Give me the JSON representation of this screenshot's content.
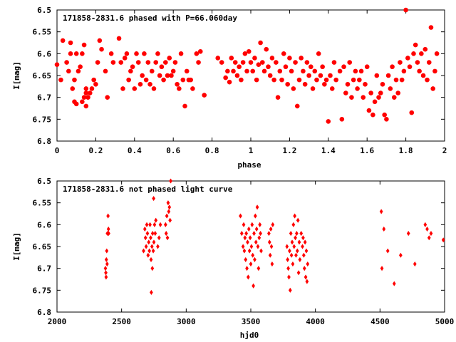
{
  "chart_data": [
    {
      "type": "scatter",
      "title": "171858-2831.6 phased with P=66.060day",
      "xlabel": "phase",
      "ylabel": "I[mag]",
      "xlim": [
        0,
        2
      ],
      "ylim": [
        6.5,
        6.8
      ],
      "y_inverted": true,
      "x_ticks": [
        "0",
        "0.2",
        "0.4",
        "0.6",
        "0.8",
        "1",
        "1.2",
        "1.4",
        "1.6",
        "1.8",
        "2"
      ],
      "y_ticks": [
        "6.5",
        "6.55",
        "6.6",
        "6.65",
        "6.7",
        "6.75",
        "6.8"
      ],
      "grid": false,
      "marker": "filled-circle",
      "color": "#ff0000",
      "points": [
        [
          0.0,
          6.625
        ],
        [
          0.02,
          6.66
        ],
        [
          0.03,
          6.57
        ],
        [
          0.05,
          6.62
        ],
        [
          0.06,
          6.64
        ],
        [
          0.07,
          6.6
        ],
        [
          0.07,
          6.575
        ],
        [
          0.08,
          6.68
        ],
        [
          0.09,
          6.66
        ],
        [
          0.09,
          6.71
        ],
        [
          0.1,
          6.6
        ],
        [
          0.1,
          6.715
        ],
        [
          0.11,
          6.64
        ],
        [
          0.12,
          6.63
        ],
        [
          0.13,
          6.6
        ],
        [
          0.13,
          6.71
        ],
        [
          0.14,
          6.7
        ],
        [
          0.14,
          6.58
        ],
        [
          0.15,
          6.68
        ],
        [
          0.15,
          6.69
        ],
        [
          0.15,
          6.72
        ],
        [
          0.16,
          6.7
        ],
        [
          0.17,
          6.69
        ],
        [
          0.18,
          6.68
        ],
        [
          0.19,
          6.66
        ],
        [
          0.2,
          6.67
        ],
        [
          0.21,
          6.62
        ],
        [
          0.22,
          6.57
        ],
        [
          0.23,
          6.59
        ],
        [
          0.25,
          6.64
        ],
        [
          0.26,
          6.7
        ],
        [
          0.28,
          6.6
        ],
        [
          0.29,
          6.62
        ],
        [
          0.32,
          6.565
        ],
        [
          0.33,
          6.62
        ],
        [
          0.34,
          6.68
        ],
        [
          0.35,
          6.61
        ],
        [
          0.36,
          6.6
        ],
        [
          0.37,
          6.66
        ],
        [
          0.38,
          6.64
        ],
        [
          0.39,
          6.63
        ],
        [
          0.4,
          6.68
        ],
        [
          0.41,
          6.6
        ],
        [
          0.42,
          6.62
        ],
        [
          0.43,
          6.67
        ],
        [
          0.44,
          6.65
        ],
        [
          0.45,
          6.6
        ],
        [
          0.46,
          6.66
        ],
        [
          0.47,
          6.62
        ],
        [
          0.48,
          6.67
        ],
        [
          0.49,
          6.64
        ],
        [
          0.5,
          6.68
        ],
        [
          0.51,
          6.62
        ],
        [
          0.52,
          6.6
        ],
        [
          0.53,
          6.65
        ],
        [
          0.54,
          6.63
        ],
        [
          0.55,
          6.66
        ],
        [
          0.56,
          6.62
        ],
        [
          0.57,
          6.65
        ],
        [
          0.58,
          6.61
        ],
        [
          0.59,
          6.65
        ],
        [
          0.6,
          6.64
        ],
        [
          0.61,
          6.62
        ],
        [
          0.62,
          6.67
        ],
        [
          0.63,
          6.68
        ],
        [
          0.64,
          6.6
        ],
        [
          0.65,
          6.66
        ],
        [
          0.66,
          6.72
        ],
        [
          0.67,
          6.64
        ],
        [
          0.68,
          6.66
        ],
        [
          0.69,
          6.66
        ],
        [
          0.7,
          6.68
        ],
        [
          0.72,
          6.6
        ],
        [
          0.73,
          6.62
        ],
        [
          0.74,
          6.595
        ],
        [
          0.76,
          6.695
        ],
        [
          0.83,
          6.61
        ],
        [
          0.85,
          6.62
        ],
        [
          0.87,
          6.655
        ],
        [
          0.88,
          6.64
        ],
        [
          0.89,
          6.665
        ],
        [
          0.9,
          6.61
        ],
        [
          0.91,
          6.64
        ],
        [
          0.92,
          6.62
        ],
        [
          0.93,
          6.65
        ],
        [
          0.94,
          6.63
        ],
        [
          0.95,
          6.66
        ],
        [
          0.96,
          6.62
        ],
        [
          0.97,
          6.6
        ],
        [
          0.98,
          6.64
        ],
        [
          0.99,
          6.595
        ],
        [
          1.0,
          6.62
        ],
        [
          1.01,
          6.64
        ],
        [
          1.02,
          6.61
        ],
        [
          1.03,
          6.66
        ],
        [
          1.04,
          6.625
        ],
        [
          1.05,
          6.575
        ],
        [
          1.06,
          6.62
        ],
        [
          1.07,
          6.64
        ],
        [
          1.08,
          6.59
        ],
        [
          1.09,
          6.63
        ],
        [
          1.1,
          6.65
        ],
        [
          1.11,
          6.61
        ],
        [
          1.12,
          6.66
        ],
        [
          1.13,
          6.62
        ],
        [
          1.14,
          6.7
        ],
        [
          1.15,
          6.64
        ],
        [
          1.16,
          6.66
        ],
        [
          1.17,
          6.6
        ],
        [
          1.18,
          6.63
        ],
        [
          1.19,
          6.67
        ],
        [
          1.2,
          6.61
        ],
        [
          1.21,
          6.64
        ],
        [
          1.22,
          6.68
        ],
        [
          1.23,
          6.62
        ],
        [
          1.24,
          6.72
        ],
        [
          1.25,
          6.66
        ],
        [
          1.26,
          6.61
        ],
        [
          1.27,
          6.64
        ],
        [
          1.28,
          6.67
        ],
        [
          1.29,
          6.62
        ],
        [
          1.3,
          6.65
        ],
        [
          1.31,
          6.63
        ],
        [
          1.32,
          6.68
        ],
        [
          1.33,
          6.64
        ],
        [
          1.34,
          6.66
        ],
        [
          1.35,
          6.6
        ],
        [
          1.36,
          6.65
        ],
        [
          1.37,
          6.63
        ],
        [
          1.38,
          6.67
        ],
        [
          1.39,
          6.66
        ],
        [
          1.4,
          6.755
        ],
        [
          1.41,
          6.65
        ],
        [
          1.42,
          6.68
        ],
        [
          1.43,
          6.62
        ],
        [
          1.44,
          6.66
        ],
        [
          1.46,
          6.64
        ],
        [
          1.47,
          6.75
        ],
        [
          1.48,
          6.63
        ],
        [
          1.49,
          6.69
        ],
        [
          1.5,
          6.67
        ],
        [
          1.51,
          6.62
        ],
        [
          1.52,
          6.7
        ],
        [
          1.53,
          6.66
        ],
        [
          1.54,
          6.64
        ],
        [
          1.55,
          6.68
        ],
        [
          1.56,
          6.66
        ],
        [
          1.57,
          6.64
        ],
        [
          1.58,
          6.7
        ],
        [
          1.59,
          6.67
        ],
        [
          1.6,
          6.63
        ],
        [
          1.61,
          6.73
        ],
        [
          1.62,
          6.69
        ],
        [
          1.63,
          6.74
        ],
        [
          1.64,
          6.71
        ],
        [
          1.65,
          6.65
        ],
        [
          1.66,
          6.7
        ],
        [
          1.67,
          6.69
        ],
        [
          1.68,
          6.67
        ],
        [
          1.69,
          6.74
        ],
        [
          1.7,
          6.75
        ],
        [
          1.71,
          6.65
        ],
        [
          1.72,
          6.68
        ],
        [
          1.73,
          6.63
        ],
        [
          1.74,
          6.7
        ],
        [
          1.75,
          6.66
        ],
        [
          1.76,
          6.69
        ],
        [
          1.77,
          6.62
        ],
        [
          1.78,
          6.66
        ],
        [
          1.79,
          6.64
        ],
        [
          1.8,
          6.5
        ],
        [
          1.81,
          6.61
        ],
        [
          1.82,
          6.63
        ],
        [
          1.83,
          6.735
        ],
        [
          1.84,
          6.6
        ],
        [
          1.85,
          6.58
        ],
        [
          1.86,
          6.62
        ],
        [
          1.87,
          6.64
        ],
        [
          1.88,
          6.6
        ],
        [
          1.89,
          6.65
        ],
        [
          1.9,
          6.59
        ],
        [
          1.91,
          6.66
        ],
        [
          1.92,
          6.62
        ],
        [
          1.93,
          6.54
        ],
        [
          1.94,
          6.68
        ],
        [
          1.95,
          6.64
        ],
        [
          1.96,
          6.6
        ]
      ]
    },
    {
      "type": "scatter",
      "title": "171858-2831.6 not phased light curve",
      "xlabel": "hjd0",
      "ylabel": "I[mag]",
      "xlim": [
        2000,
        5000
      ],
      "ylim": [
        6.5,
        6.8
      ],
      "y_inverted": true,
      "x_ticks": [
        "2000",
        "2500",
        "3000",
        "3500",
        "4000",
        "4500",
        "5000"
      ],
      "y_ticks": [
        "6.5",
        "6.55",
        "6.6",
        "6.65",
        "6.7",
        "6.75",
        "6.8"
      ],
      "grid": false,
      "marker": "diamond",
      "color": "#ff0000",
      "points": [
        [
          2375,
          6.7
        ],
        [
          2378,
          6.71
        ],
        [
          2380,
          6.72
        ],
        [
          2382,
          6.68
        ],
        [
          2385,
          6.66
        ],
        [
          2388,
          6.69
        ],
        [
          2390,
          6.62
        ],
        [
          2395,
          6.58
        ],
        [
          2398,
          6.61
        ],
        [
          2400,
          6.62
        ],
        [
          2670,
          6.66
        ],
        [
          2680,
          6.61
        ],
        [
          2685,
          6.63
        ],
        [
          2690,
          6.65
        ],
        [
          2695,
          6.6
        ],
        [
          2700,
          6.62
        ],
        [
          2705,
          6.67
        ],
        [
          2710,
          6.64
        ],
        [
          2715,
          6.66
        ],
        [
          2720,
          6.6
        ],
        [
          2725,
          6.63
        ],
        [
          2728,
          6.68
        ],
        [
          2730,
          6.755
        ],
        [
          2735,
          6.65
        ],
        [
          2738,
          6.7
        ],
        [
          2740,
          6.62
        ],
        [
          2745,
          6.66
        ],
        [
          2748,
          6.54
        ],
        [
          2750,
          6.64
        ],
        [
          2755,
          6.6
        ],
        [
          2760,
          6.62
        ],
        [
          2765,
          6.59
        ],
        [
          2780,
          6.65
        ],
        [
          2790,
          6.63
        ],
        [
          2800,
          6.6
        ],
        [
          2840,
          6.6
        ],
        [
          2845,
          6.62
        ],
        [
          2850,
          6.58
        ],
        [
          2855,
          6.63
        ],
        [
          2860,
          6.55
        ],
        [
          2865,
          6.57
        ],
        [
          2870,
          6.56
        ],
        [
          2875,
          6.59
        ],
        [
          2880,
          6.5
        ],
        [
          3420,
          6.58
        ],
        [
          3430,
          6.62
        ],
        [
          3440,
          6.65
        ],
        [
          3445,
          6.6
        ],
        [
          3450,
          6.66
        ],
        [
          3455,
          6.63
        ],
        [
          3460,
          6.68
        ],
        [
          3465,
          6.62
        ],
        [
          3470,
          6.7
        ],
        [
          3475,
          6.64
        ],
        [
          3480,
          6.72
        ],
        [
          3485,
          6.61
        ],
        [
          3490,
          6.66
        ],
        [
          3495,
          6.63
        ],
        [
          3500,
          6.69
        ],
        [
          3505,
          6.65
        ],
        [
          3510,
          6.6
        ],
        [
          3515,
          6.67
        ],
        [
          3520,
          6.74
        ],
        [
          3525,
          6.62
        ],
        [
          3530,
          6.68
        ],
        [
          3535,
          6.58
        ],
        [
          3540,
          6.64
        ],
        [
          3545,
          6.61
        ],
        [
          3550,
          6.56
        ],
        [
          3555,
          6.65
        ],
        [
          3560,
          6.7
        ],
        [
          3565,
          6.63
        ],
        [
          3570,
          6.6
        ],
        [
          3575,
          6.62
        ],
        [
          3580,
          6.66
        ],
        [
          3640,
          6.62
        ],
        [
          3645,
          6.64
        ],
        [
          3650,
          6.67
        ],
        [
          3655,
          6.61
        ],
        [
          3660,
          6.65
        ],
        [
          3665,
          6.69
        ],
        [
          3670,
          6.6
        ],
        [
          3780,
          6.65
        ],
        [
          3785,
          6.68
        ],
        [
          3790,
          6.7
        ],
        [
          3795,
          6.72
        ],
        [
          3800,
          6.66
        ],
        [
          3805,
          6.75
        ],
        [
          3810,
          6.62
        ],
        [
          3815,
          6.67
        ],
        [
          3820,
          6.64
        ],
        [
          3825,
          6.69
        ],
        [
          3830,
          6.6
        ],
        [
          3835,
          6.65
        ],
        [
          3840,
          6.58
        ],
        [
          3845,
          6.63
        ],
        [
          3850,
          6.67
        ],
        [
          3855,
          6.62
        ],
        [
          3860,
          6.66
        ],
        [
          3865,
          6.59
        ],
        [
          3870,
          6.71
        ],
        [
          3875,
          6.64
        ],
        [
          3880,
          6.68
        ],
        [
          3890,
          6.62
        ],
        [
          3900,
          6.65
        ],
        [
          3905,
          6.63
        ],
        [
          3910,
          6.67
        ],
        [
          3915,
          6.7
        ],
        [
          3920,
          6.64
        ],
        [
          3925,
          6.72
        ],
        [
          3930,
          6.66
        ],
        [
          3935,
          6.73
        ],
        [
          3940,
          6.69
        ],
        [
          4510,
          6.57
        ],
        [
          4515,
          6.7
        ],
        [
          4530,
          6.61
        ],
        [
          4560,
          6.66
        ],
        [
          4610,
          6.735
        ],
        [
          4660,
          6.67
        ],
        [
          4720,
          6.62
        ],
        [
          4770,
          6.69
        ],
        [
          4850,
          6.6
        ],
        [
          4865,
          6.61
        ],
        [
          4880,
          6.63
        ],
        [
          4895,
          6.62
        ],
        [
          4990,
          6.635
        ]
      ]
    }
  ]
}
